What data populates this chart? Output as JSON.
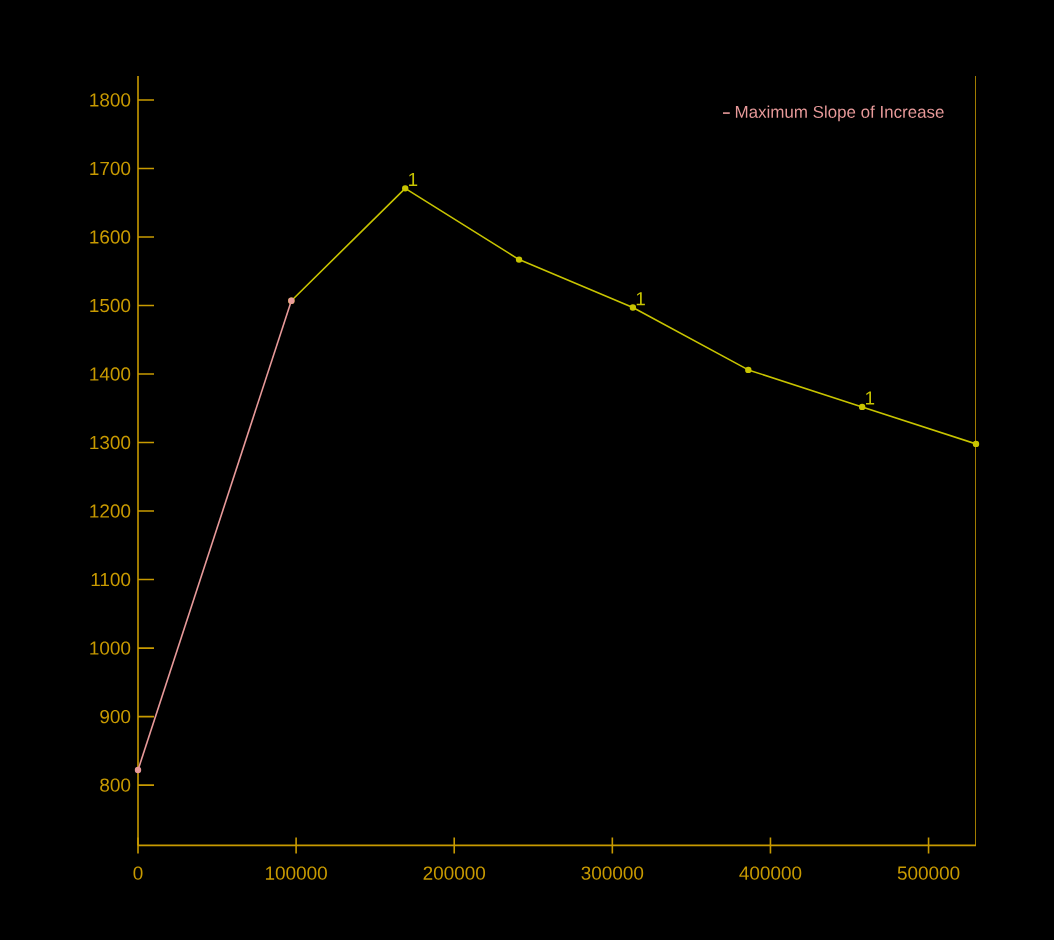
{
  "chart_data": {
    "type": "line",
    "legend": "top right",
    "marker": "circle",
    "line_style": "solid",
    "series": [
      {
        "name": "Maximum Slope of Increase",
        "color": "#e89a9a",
        "x": [
          0,
          97000
        ],
        "values": [
          822,
          1507
        ]
      },
      {
        "color": "#c8c400",
        "x": [
          97000,
          169000,
          241000,
          313000,
          386000,
          458000,
          530000
        ],
        "values": [
          1507,
          1671,
          1567,
          1497,
          1406,
          1352,
          1298
        ]
      }
    ],
    "annotations": [
      {
        "text": "1",
        "x": 169000,
        "y": 1671
      },
      {
        "text": "1",
        "x": 313000,
        "y": 1497
      },
      {
        "text": "1",
        "x": 458000,
        "y": 1352
      }
    ],
    "xlim": [
      0,
      530000
    ],
    "ylim": [
      712,
      1835
    ],
    "xticks": [
      0,
      100000,
      200000,
      300000,
      400000,
      500000
    ],
    "yticks": [
      800,
      900,
      1000,
      1100,
      1200,
      1300,
      1400,
      1500,
      1600,
      1700,
      1800
    ]
  }
}
